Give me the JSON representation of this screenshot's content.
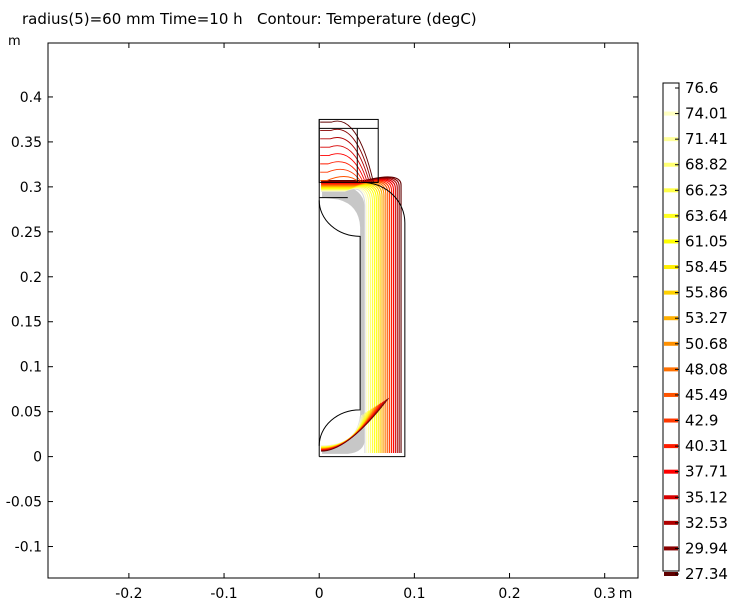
{
  "title": "radius(5)=60 mm Time=10 h   Contour: Temperature (degC)",
  "y_unit": "m",
  "colors": {
    "background": "#ffffff",
    "geometry": "#000000",
    "infill": "#bdbdbd"
  },
  "chart_data": {
    "type": "contour",
    "title": "radius(5)=60 mm Time=10 h   Contour: Temperature (degC)",
    "quantity": "Temperature (degC)",
    "parameter": "radius(5)=60 mm",
    "time": "Time=10 h",
    "xlim": [
      -0.285,
      0.335
    ],
    "ylim": [
      -0.135,
      0.46
    ],
    "x_ticks": [
      {
        "value": -0.2,
        "label": "-0.2"
      },
      {
        "value": -0.1,
        "label": "-0.1"
      },
      {
        "value": 0,
        "label": "0"
      },
      {
        "value": 0.1,
        "label": "0.1"
      },
      {
        "value": 0.2,
        "label": "0.2"
      },
      {
        "value": 0.3,
        "label": "0.3"
      }
    ],
    "x_unit": "m",
    "y_ticks": [
      {
        "value": 0.4,
        "label": "0.4"
      },
      {
        "value": 0.35,
        "label": "0.35"
      },
      {
        "value": 0.3,
        "label": "0.3"
      },
      {
        "value": 0.25,
        "label": "0.25"
      },
      {
        "value": 0.2,
        "label": "0.2"
      },
      {
        "value": 0.15,
        "label": "0.15"
      },
      {
        "value": 0.1,
        "label": "0.1"
      },
      {
        "value": 0.05,
        "label": "0.05"
      },
      {
        "value": 0,
        "label": "0"
      },
      {
        "value": -0.05,
        "label": "-0.05"
      },
      {
        "value": -0.1,
        "label": "-0.1"
      }
    ],
    "y_unit": "m",
    "contour_levels": [
      {
        "value": 76.6,
        "label": "76.6",
        "color": "#ffffff"
      },
      {
        "value": 74.01,
        "label": "74.01",
        "color": "#ffffc0"
      },
      {
        "value": 71.41,
        "label": "71.41",
        "color": "#ffff99"
      },
      {
        "value": 68.82,
        "label": "68.82",
        "color": "#ffff70"
      },
      {
        "value": 66.23,
        "label": "66.23",
        "color": "#ffff48"
      },
      {
        "value": 63.64,
        "label": "63.64",
        "color": "#ffff20"
      },
      {
        "value": 61.05,
        "label": "61.05",
        "color": "#ffff00"
      },
      {
        "value": 58.45,
        "label": "58.45",
        "color": "#ffee00"
      },
      {
        "value": 55.86,
        "label": "55.86",
        "color": "#ffd000"
      },
      {
        "value": 53.27,
        "label": "53.27",
        "color": "#ffb000"
      },
      {
        "value": 50.68,
        "label": "50.68",
        "color": "#ff9000"
      },
      {
        "value": 48.08,
        "label": "48.08",
        "color": "#ff7000"
      },
      {
        "value": 45.49,
        "label": "45.49",
        "color": "#ff5400"
      },
      {
        "value": 42.9,
        "label": "42.9",
        "color": "#ff3800"
      },
      {
        "value": 40.31,
        "label": "40.31",
        "color": "#ff1c00"
      },
      {
        "value": 37.71,
        "label": "37.71",
        "color": "#ff0000"
      },
      {
        "value": 35.12,
        "label": "35.12",
        "color": "#d80000"
      },
      {
        "value": 32.53,
        "label": "32.53",
        "color": "#b00000"
      },
      {
        "value": 29.94,
        "label": "29.94",
        "color": "#880000"
      },
      {
        "value": 27.34,
        "label": "27.34",
        "color": "#600000"
      }
    ],
    "geometry": {
      "outer_body": {
        "r_min": 0,
        "r_max": 0.09,
        "z_min": 0,
        "z_max": 0.26,
        "top_round_radius": 0.045,
        "top_z": 0.305
      },
      "inner_cavity": {
        "r_max": 0.043,
        "z_min": 0.012,
        "z_max": 0.285,
        "corner_radius": 0.04
      },
      "top_block": {
        "r_min": 0,
        "r_max": 0.062,
        "z_min": 0.305,
        "z_max": 0.375
      },
      "top_block_divider_r": 0.04,
      "top_block_inner_line_z": 0.33
    },
    "grid": false,
    "legend": "colorbar right"
  }
}
